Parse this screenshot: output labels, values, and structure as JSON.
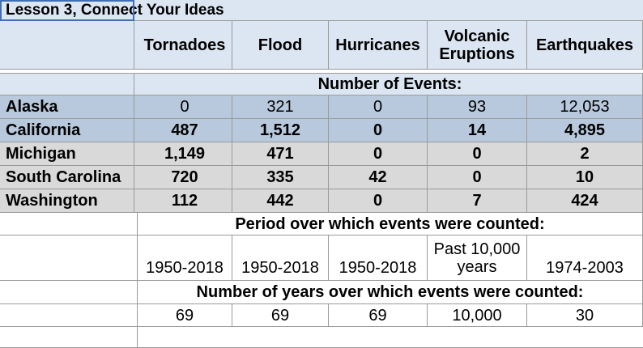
{
  "title": "Lesson 3, Connect Your Ideas",
  "columns": [
    "Tornadoes",
    "Flood",
    "Hurricanes",
    [
      "Volcanic",
      "Eruptions"
    ],
    "Earthquakes"
  ],
  "events_heading": "Number of Events:",
  "rows": [
    {
      "state": "Alaska",
      "values": [
        "0",
        "321",
        "0",
        "93",
        "12,053"
      ]
    },
    {
      "state": "California",
      "values": [
        "487",
        "1,512",
        "0",
        "14",
        "4,895"
      ]
    },
    {
      "state": "Michigan",
      "values": [
        "1,149",
        "471",
        "0",
        "0",
        "2"
      ]
    },
    {
      "state": "South Carolina",
      "values": [
        "720",
        "335",
        "42",
        "0",
        "10"
      ]
    },
    {
      "state": "Washington",
      "values": [
        "112",
        "442",
        "0",
        "7",
        "424"
      ]
    }
  ],
  "period_heading": "Period over which events were counted:",
  "periods": [
    "1950-2018",
    "1950-2018",
    "1950-2018",
    [
      "Past 10,000",
      "years"
    ],
    "1974-2003"
  ],
  "years_heading": "Number of years over which events were counted:",
  "years": [
    "69",
    "69",
    "69",
    "10,000",
    "30"
  ]
}
